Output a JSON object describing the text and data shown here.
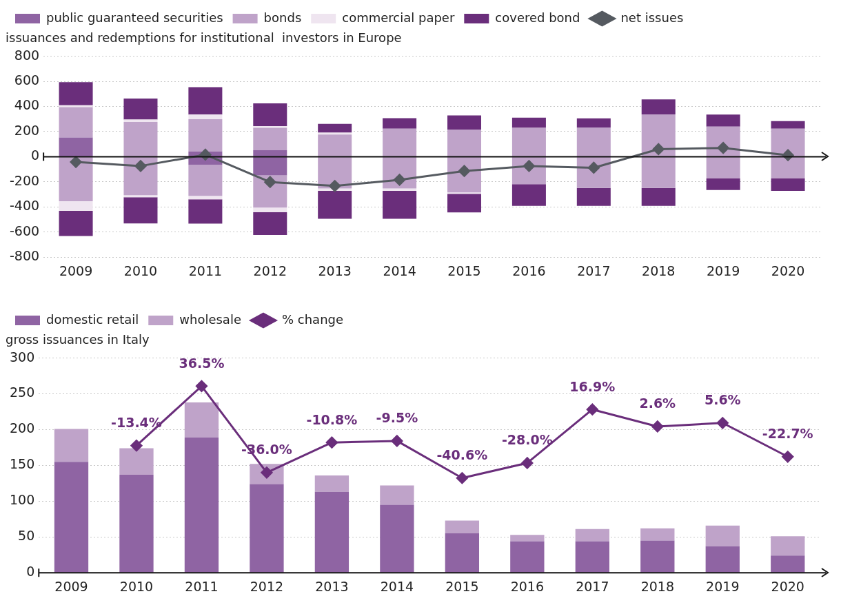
{
  "chart_data": [
    {
      "type": "bar",
      "title": "issuances and redemptions for institutional  investors in Europe",
      "categories": [
        "2009",
        "2010",
        "2011",
        "2012",
        "2013",
        "2014",
        "2015",
        "2016",
        "2017",
        "2018",
        "2019",
        "2020"
      ],
      "stacked": true,
      "ylim": [
        -800,
        800
      ],
      "yticks": [
        -800,
        -600,
        -400,
        -200,
        0,
        200,
        400,
        600,
        800
      ],
      "grid": "y",
      "legend": "top left",
      "marker": "diamond",
      "series": [
        {
          "name": "public guaranteed securities",
          "color": "#8f64a3",
          "values": [
            153,
            0,
            42,
            51,
            0,
            0,
            0,
            0,
            0,
            0,
            0,
            0
          ]
        },
        {
          "color": "#8f64a3",
          "values": [
            0,
            0,
            -65,
            -149,
            0,
            0,
            0,
            0,
            0,
            0,
            0,
            0
          ]
        },
        {
          "name": "bonds",
          "color": "#bfa3c9",
          "values": [
            242,
            277,
            256,
            179,
            177,
            223,
            216,
            230,
            233,
            337,
            240,
            223
          ]
        },
        {
          "color": "#bfa3c9",
          "values": [
            -354,
            -307,
            -247,
            -256,
            -253,
            -253,
            -284,
            -219,
            -249,
            -249,
            -174,
            -174
          ]
        },
        {
          "name": "commercial paper",
          "color": "#efe5f0",
          "values": [
            14,
            19,
            37,
            14,
            14,
            null,
            0,
            null,
            0,
            0,
            0,
            0
          ]
        },
        {
          "color": "#efe5f0",
          "values": [
            -77,
            -16,
            -28,
            -37,
            -19,
            -19,
            -12,
            0,
            0,
            0,
            0,
            0
          ]
        },
        {
          "name": "covered bond",
          "color": "#6a2e7b",
          "values": [
            184,
            167,
            219,
            181,
            70,
            84,
            112,
            81,
            72,
            119,
            95,
            60
          ]
        },
        {
          "color": "#6a2e7b",
          "values": [
            -200,
            -209,
            -193,
            -181,
            -223,
            -223,
            -147,
            -172,
            -142,
            -142,
            -91,
            -98
          ]
        },
        {
          "name": "net issues",
          "type": "line",
          "color": "#555a60",
          "values": [
            -42,
            -74,
            16,
            -202,
            -233,
            -184,
            -114,
            -74,
            -88,
            60,
            70,
            12
          ]
        }
      ]
    },
    {
      "type": "bar",
      "title": "gross issuances in Italy",
      "categories": [
        "2009",
        "2010",
        "2011",
        "2012",
        "2013",
        "2014",
        "2015",
        "2016",
        "2017",
        "2018",
        "2019",
        "2020"
      ],
      "stacked": true,
      "ylim": [
        0,
        300
      ],
      "yticks": [
        0,
        50,
        100,
        150,
        200,
        250,
        300
      ],
      "y2lim": [
        -120,
        60
      ],
      "grid": "y",
      "legend": "top left",
      "marker": "diamond",
      "series": [
        {
          "name": "domestic retail",
          "color": "#8f64a3",
          "values": [
            155,
            137,
            189,
            124,
            113,
            95,
            55,
            44,
            44,
            45,
            37,
            24
          ]
        },
        {
          "name": "wholesale",
          "color": "#bfa3c9",
          "values": [
            46,
            37,
            49,
            28,
            23,
            27,
            18,
            9,
            17,
            17,
            29,
            27
          ]
        },
        {
          "name": "% change",
          "type": "line",
          "axis": "y2",
          "color": "#6a2e7b",
          "values": [
            null,
            -13.4,
            36.5,
            -36.0,
            -10.8,
            -9.5,
            -40.6,
            -28.0,
            16.9,
            2.6,
            5.6,
            -22.7
          ],
          "value_labels": [
            null,
            "-13.4%",
            "36.5%",
            "-36.0%",
            "-10.8%",
            "-9.5%",
            "-40.6%",
            "-28.0%",
            "16.9%",
            "2.6%",
            "5.6%",
            "-22.7%"
          ]
        }
      ]
    }
  ]
}
